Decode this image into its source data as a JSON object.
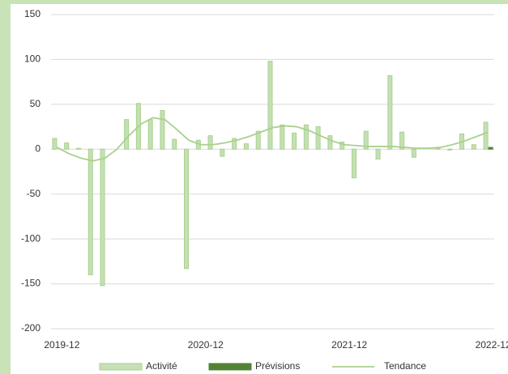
{
  "chart_data": {
    "type": "bar",
    "categories": [
      "2019-12",
      null,
      null,
      null,
      null,
      null,
      null,
      null,
      null,
      null,
      null,
      null,
      "2020-12",
      null,
      null,
      null,
      null,
      null,
      null,
      null,
      null,
      null,
      null,
      null,
      "2021-12",
      null,
      null,
      null,
      null,
      null,
      null,
      null,
      null,
      null,
      null,
      null,
      "2022-12"
    ],
    "series": [
      {
        "name": "Activité",
        "type": "bar",
        "color": "#c5e0b4",
        "values": [
          12,
          7,
          1,
          -140,
          -152,
          0,
          33,
          51,
          33,
          43,
          11,
          -133,
          10,
          15,
          -8,
          12,
          6,
          20,
          98,
          27,
          18,
          27,
          25,
          15,
          8,
          -32,
          20,
          -11,
          82,
          19,
          -9,
          0,
          1,
          -1,
          17,
          5,
          30
        ]
      },
      {
        "name": "Prévisions",
        "type": "bar",
        "color": "#548235",
        "values": [
          null,
          null,
          null,
          null,
          null,
          null,
          null,
          null,
          null,
          null,
          null,
          null,
          null,
          null,
          null,
          null,
          null,
          null,
          null,
          null,
          null,
          null,
          null,
          null,
          null,
          null,
          null,
          null,
          null,
          null,
          null,
          null,
          null,
          null,
          null,
          null,
          2
        ]
      },
      {
        "name": "Tendance",
        "type": "line",
        "color": "#a9d18e",
        "values": [
          2,
          -5,
          -10,
          -13,
          -10,
          0,
          15,
          28,
          35,
          33,
          22,
          10,
          5,
          5,
          7,
          10,
          14,
          19,
          24,
          26,
          25,
          21,
          15,
          9,
          5,
          4,
          3,
          3,
          3,
          2,
          1,
          1,
          2,
          5,
          9,
          14,
          19
        ]
      }
    ],
    "ylim": [
      -200,
      150
    ],
    "yticks": [
      -200,
      -150,
      -100,
      -50,
      0,
      50,
      100,
      150
    ],
    "grid": true,
    "legend": "bottom"
  }
}
